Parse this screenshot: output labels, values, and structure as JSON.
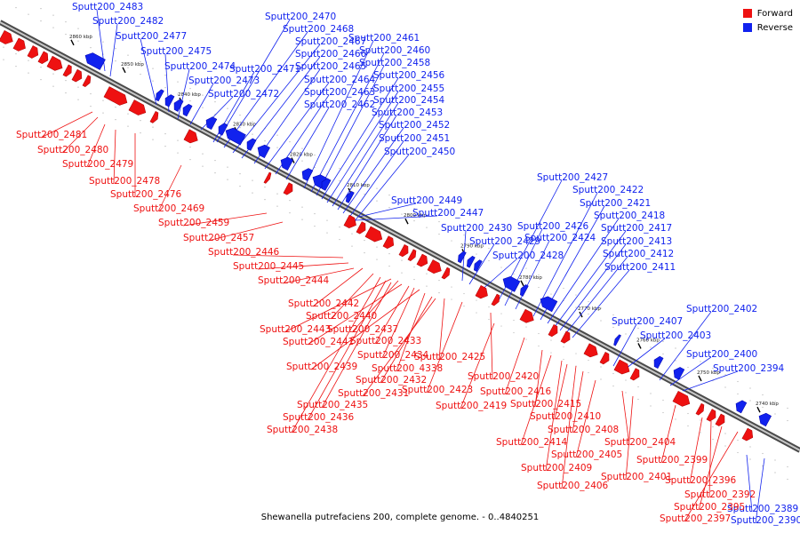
{
  "colors": {
    "forward": "#ee1111",
    "reverse": "#1122ee",
    "backbone": "#8a8a8a"
  },
  "legend": {
    "forward_label": "Forward",
    "reverse_label": "Reverse"
  },
  "caption": "Shewanella putrefaciens 200, complete genome. - 0..4840251",
  "ticks": [
    "2860 kbp",
    "2850 kbp",
    "2840 kbp",
    "2830 kbp",
    "2820 kbp",
    "2810 kbp",
    "2800 kbp",
    "2790 kbp",
    "2780 kbp",
    "2770 kbp",
    "2760 kbp",
    "2750 kbp",
    "2740 kbp"
  ],
  "reverse_labels": [
    "Sputt200_2483",
    "Sputt200_2482",
    "Sputt200_2477",
    "Sputt200_2475",
    "Sputt200_2474",
    "Sputt200_2473",
    "Sputt200_2472",
    "Sputt200_2471",
    "Sputt200_2470",
    "Sputt200_2468",
    "Sputt200_2467",
    "Sputt200_2466",
    "Sputt200_2465",
    "Sputt200_2464",
    "Sputt200_2463",
    "Sputt200_2462",
    "Sputt200_2461",
    "Sputt200_2460",
    "Sputt200_2458",
    "Sputt200_2456",
    "Sputt200_2455",
    "Sputt200_2454",
    "Sputt200_2453",
    "Sputt200_2452",
    "Sputt200_2451",
    "Sputt200_2450",
    "Sputt200_2449",
    "Sputt200_2447",
    "Sputt200_2430",
    "Sputt200_2429",
    "Sputt200_2428",
    "Sputt200_2427",
    "Sputt200_2426",
    "Sputt200_2424",
    "Sputt200_2422",
    "Sputt200_2421",
    "Sputt200_2418",
    "Sputt200_2417",
    "Sputt200_2413",
    "Sputt200_2412",
    "Sputt200_2411",
    "Sputt200_2407",
    "Sputt200_2403",
    "Sputt200_2402",
    "Sputt200_2400",
    "Sputt200_2394",
    "Sputt200_2389",
    "Sputt200_2390"
  ],
  "forward_labels": [
    "Sputt200_2481",
    "Sputt200_2480",
    "Sputt200_2479",
    "Sputt200_2478",
    "Sputt200_2476",
    "Sputt200_2469",
    "Sputt200_2459",
    "Sputt200_2457",
    "Sputt200_2446",
    "Sputt200_2445",
    "Sputt200_2444",
    "Sputt200_2442",
    "Sputt200_2440",
    "Sputt200_2443",
    "Sputt200_2437",
    "Sputt200_2441",
    "Sputt200_2433",
    "Sputt200_2434",
    "Sputt200_2439",
    "Sputt200_4338",
    "Sputt200_2432",
    "Sputt200_2431",
    "Sputt200_2435",
    "Sputt200_2436",
    "Sputt200_2438",
    "Sputt200_2425",
    "Sputt200_2420",
    "Sputt200_2423",
    "Sputt200_2416",
    "Sputt200_2419",
    "Sputt200_2415",
    "Sputt200_2410",
    "Sputt200_2408",
    "Sputt200_2414",
    "Sputt200_2405",
    "Sputt200_2404",
    "Sputt200_2409",
    "Sputt200_2406",
    "Sputt200_2401",
    "Sputt200_2399",
    "Sputt200_2396",
    "Sputt200_2392",
    "Sputt200_2395",
    "Sputt200_2397"
  ]
}
